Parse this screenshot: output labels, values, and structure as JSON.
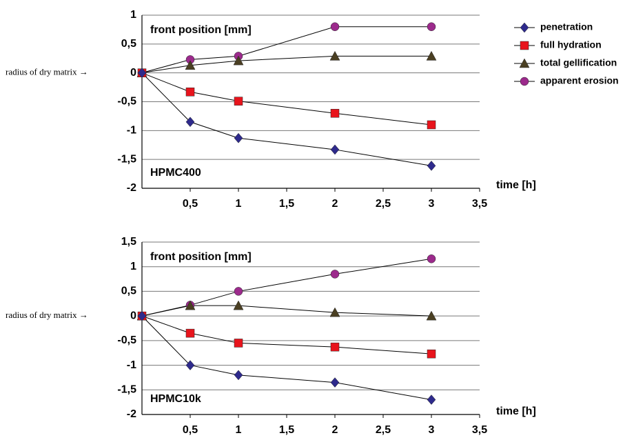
{
  "chart_data": [
    {
      "type": "line",
      "annotation": "front position [mm]",
      "label": "HPMC400",
      "x_label": "time [h]",
      "side_note": "radius of dry matrix →",
      "x": [
        0,
        0.5,
        1,
        2,
        3
      ],
      "xlim": [
        0,
        3.5
      ],
      "xticks": [
        {
          "value": 0.5,
          "label": "0,5"
        },
        1,
        {
          "value": 1.5,
          "label": "1,5"
        },
        2,
        {
          "value": 2.5,
          "label": "2,5"
        },
        3,
        {
          "value": 3.5,
          "label": "3,5"
        }
      ],
      "ylim": [
        -2,
        1
      ],
      "yticks": [
        1,
        {
          "value": 0.5,
          "label": "0,5"
        },
        0,
        {
          "value": -0.5,
          "label": "-0,5"
        },
        -1,
        {
          "value": -1.5,
          "label": "-1,5"
        },
        -2
      ],
      "grid": true,
      "legend": "upper right",
      "series": [
        {
          "name": "penetration",
          "color": "#2e2a8c",
          "marker": "diamond",
          "values": [
            0,
            -0.85,
            -1.13,
            -1.33,
            -1.61
          ]
        },
        {
          "name": "full hydration",
          "color": "#e8141c",
          "marker": "square",
          "values": [
            0,
            -0.33,
            -0.49,
            -0.7,
            -0.9
          ]
        },
        {
          "name": "total gellification",
          "color": "#4a3f22",
          "marker": "triangle",
          "values": [
            0,
            0.13,
            0.21,
            0.29,
            0.29
          ]
        },
        {
          "name": "apparent erosion",
          "color": "#9c2a8c",
          "marker": "circle",
          "values": [
            0,
            0.23,
            0.29,
            0.8,
            0.8
          ]
        }
      ]
    },
    {
      "type": "line",
      "annotation": "front position [mm]",
      "label": "HPMC10k",
      "x_label": "time [h]",
      "side_note": "radius of dry matrix →",
      "x": [
        0,
        0.5,
        1,
        2,
        3
      ],
      "xlim": [
        0,
        3.5
      ],
      "xticks": [
        {
          "value": 0.5,
          "label": "0,5"
        },
        1,
        {
          "value": 1.5,
          "label": "1,5"
        },
        2,
        {
          "value": 2.5,
          "label": "2,5"
        },
        3,
        {
          "value": 3.5,
          "label": "3,5"
        }
      ],
      "ylim": [
        -2,
        1.5
      ],
      "yticks": [
        {
          "value": 1.5,
          "label": "1,5"
        },
        1,
        {
          "value": 0.5,
          "label": "0,5"
        },
        0,
        {
          "value": -0.5,
          "label": "-0,5"
        },
        -1,
        {
          "value": -1.5,
          "label": "-1,5"
        },
        -2
      ],
      "grid": true,
      "series": [
        {
          "color": "#2e2a8c",
          "marker": "diamond",
          "values": [
            0,
            -1.0,
            -1.2,
            -1.35,
            -1.7
          ]
        },
        {
          "color": "#e8141c",
          "marker": "square",
          "values": [
            0,
            -0.35,
            -0.55,
            -0.63,
            -0.77
          ]
        },
        {
          "color": "#4a3f22",
          "marker": "triangle",
          "values": [
            0,
            0.21,
            0.21,
            0.07,
            0
          ]
        },
        {
          "color": "#9c2a8c",
          "marker": "circle",
          "values": [
            0,
            0.22,
            0.5,
            0.85,
            1.16
          ]
        }
      ]
    }
  ]
}
